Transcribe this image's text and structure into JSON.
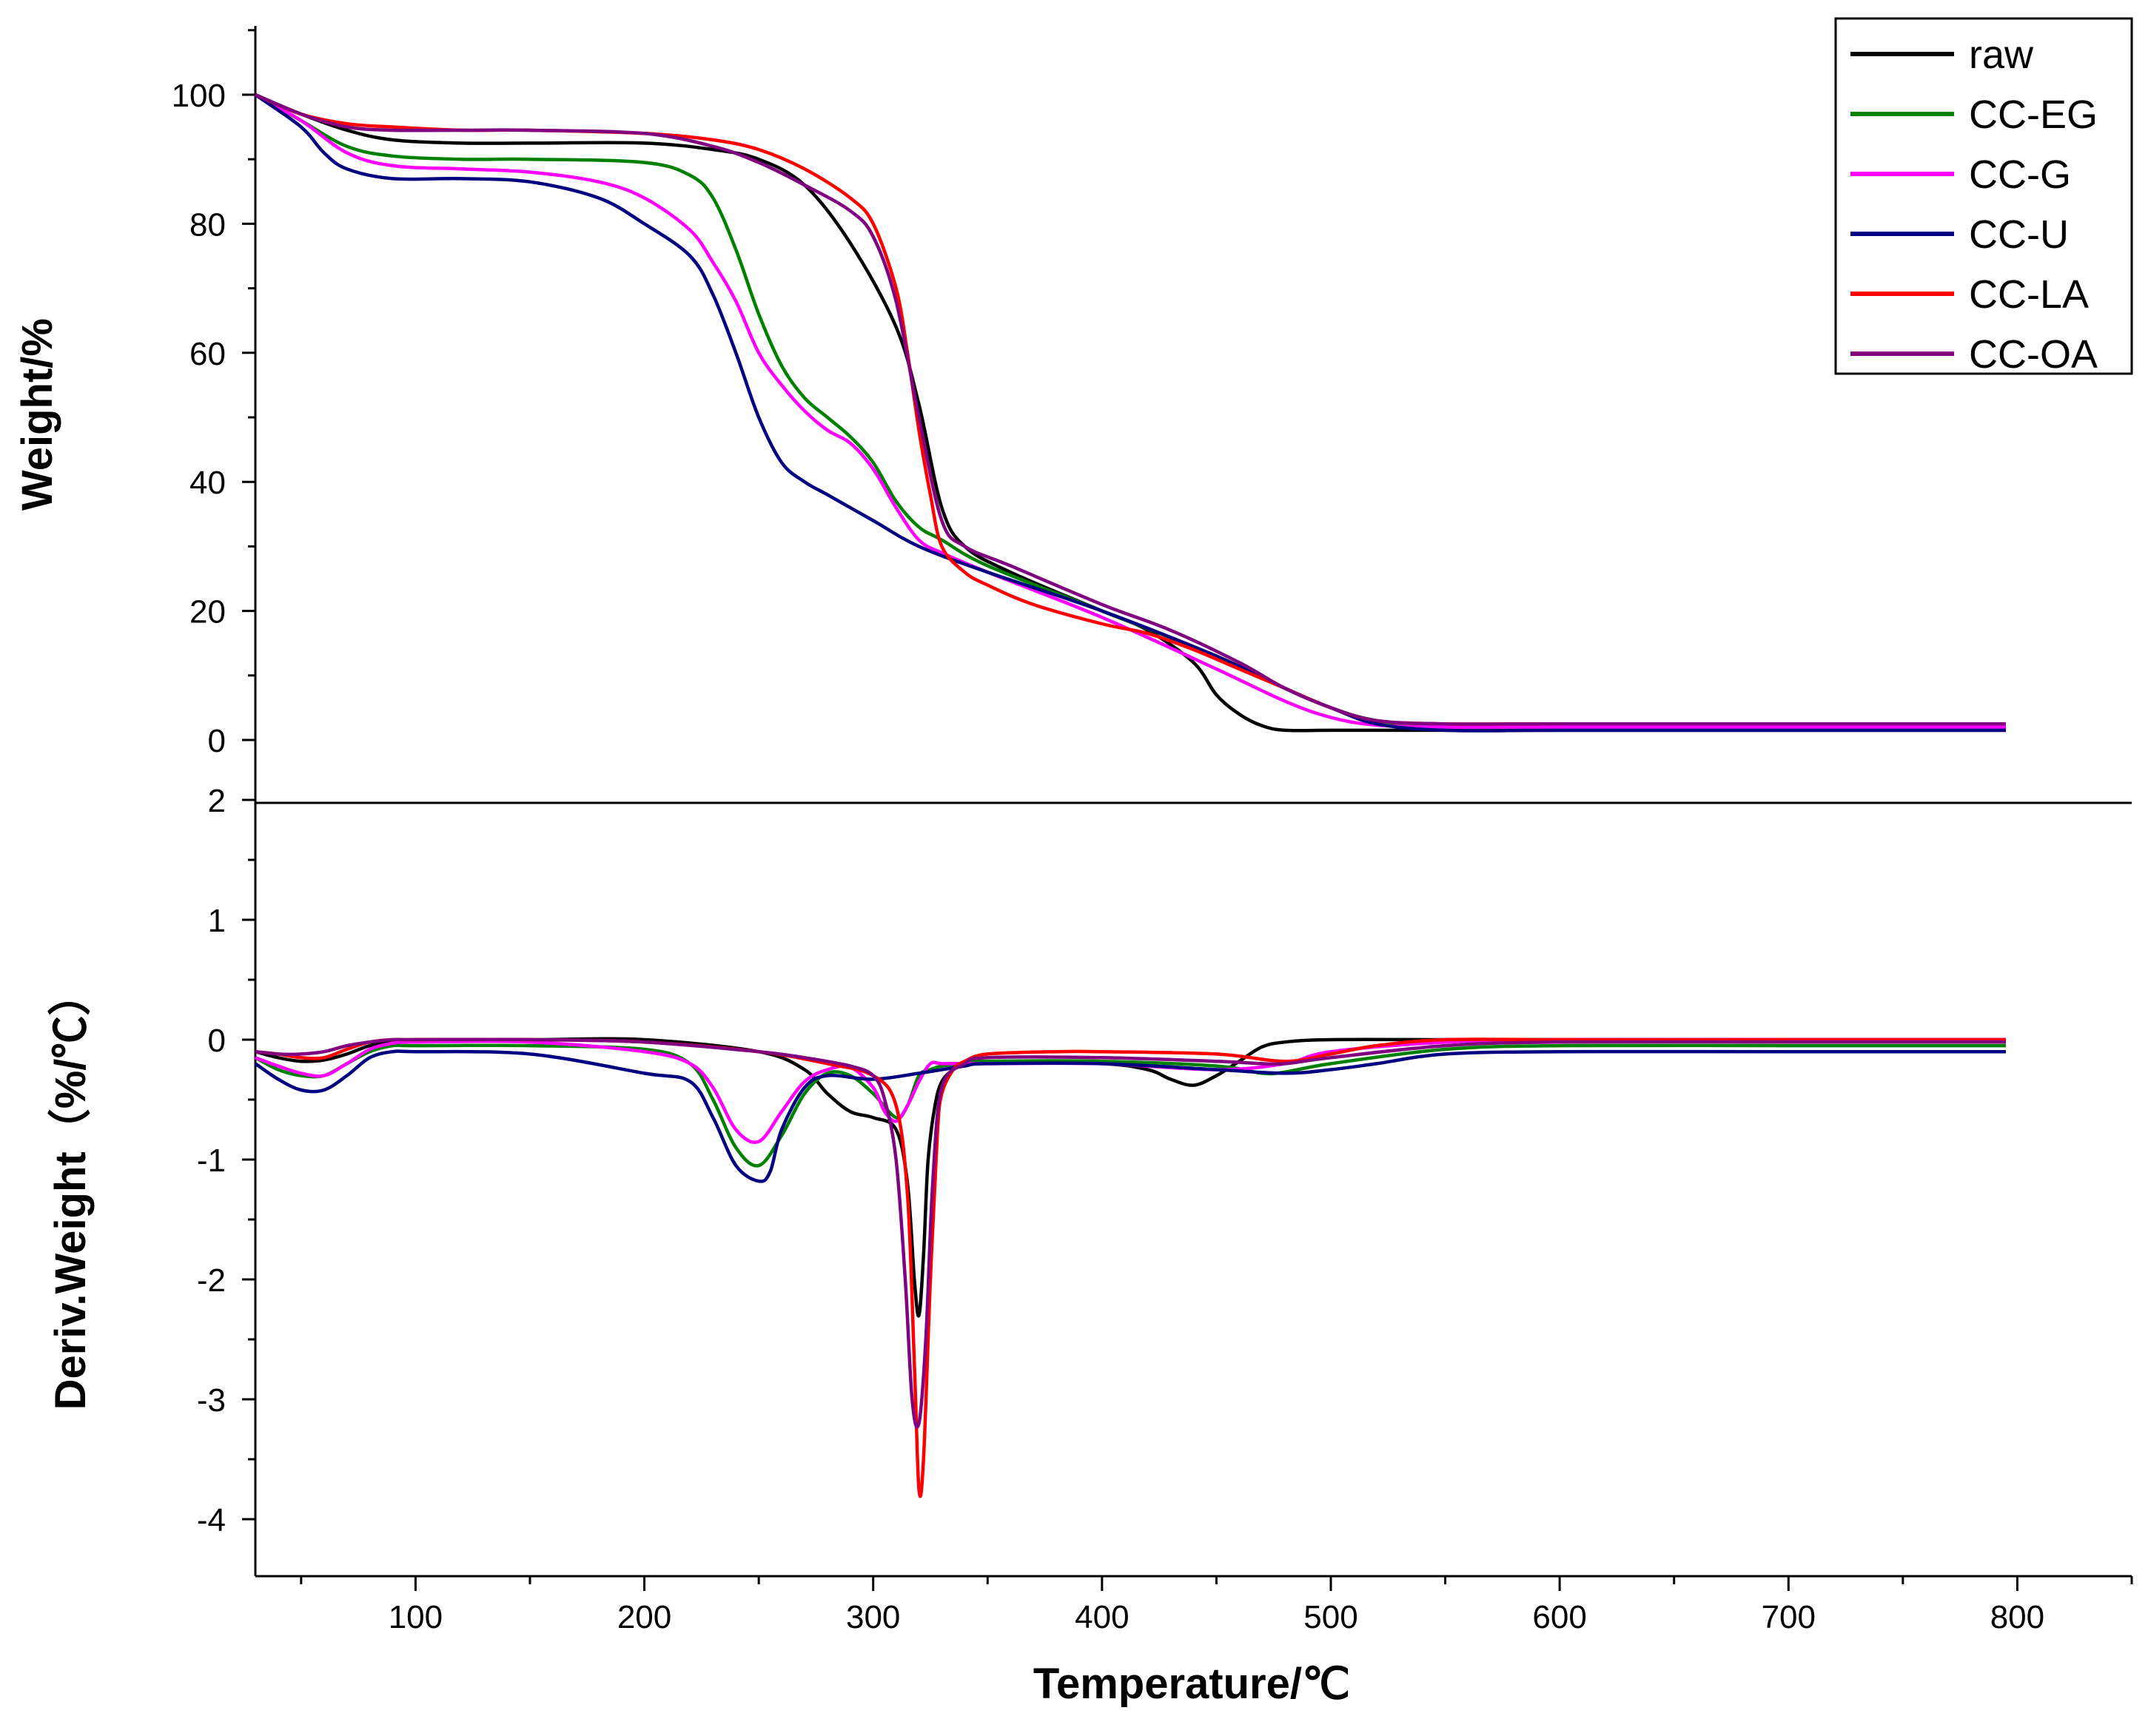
{
  "chart_data": [
    {
      "type": "line",
      "panel": "top",
      "title": "",
      "xlabel": "Temperature/℃",
      "ylabel": "Weight/%",
      "xlim": [
        30,
        850
      ],
      "ylim": [
        -5,
        110
      ],
      "x_ticks": [
        100,
        200,
        300,
        400,
        500,
        600,
        700,
        800
      ],
      "y_ticks": [
        0,
        20,
        40,
        60,
        80,
        100
      ],
      "legend": {
        "position": "top-right",
        "entries": [
          "raw",
          "CC-EG",
          "CC-G",
          "CC-U",
          "CC-LA",
          "CC-OA"
        ]
      },
      "series": [
        {
          "name": "raw",
          "color": "#000000",
          "x": [
            30,
            50,
            70,
            90,
            120,
            150,
            200,
            230,
            250,
            270,
            290,
            310,
            320,
            330,
            340,
            360,
            400,
            420,
            440,
            450,
            460,
            470,
            480,
            500,
            550,
            600,
            700,
            795
          ],
          "values": [
            100,
            97,
            94.5,
            93,
            92.5,
            92.5,
            92.5,
            91.5,
            90,
            86,
            77,
            64,
            52,
            36,
            30,
            26,
            20,
            17,
            12,
            7,
            4,
            2.2,
            1.5,
            1.5,
            1.5,
            1.5,
            1.5,
            1.5
          ]
        },
        {
          "name": "CC-EG",
          "color": "#008000",
          "x": [
            30,
            50,
            70,
            90,
            120,
            150,
            200,
            220,
            230,
            240,
            250,
            260,
            270,
            280,
            290,
            300,
            310,
            320,
            330,
            350,
            400,
            450,
            480,
            500,
            520,
            550,
            600,
            700,
            795
          ],
          "values": [
            100,
            96,
            92,
            90.5,
            90,
            90,
            89.5,
            87.5,
            84,
            76,
            66,
            58,
            53,
            50,
            47,
            43,
            37,
            33,
            31,
            27,
            20,
            13,
            8,
            5,
            3,
            2,
            2,
            2,
            2
          ]
        },
        {
          "name": "CC-G",
          "color": "#ff00ff",
          "x": [
            30,
            50,
            70,
            90,
            120,
            150,
            180,
            200,
            220,
            230,
            240,
            250,
            260,
            270,
            280,
            290,
            300,
            310,
            320,
            330,
            350,
            400,
            450,
            480,
            500,
            520,
            550,
            600,
            700,
            795
          ],
          "values": [
            100,
            96,
            91,
            89,
            88.5,
            88,
            86.5,
            84,
            79,
            74,
            68,
            60,
            55,
            51,
            48,
            46,
            42,
            36,
            31,
            29,
            26,
            19,
            11,
            6,
            3.5,
            2.3,
            2,
            2,
            2,
            2
          ]
        },
        {
          "name": "CC-U",
          "color": "#000080",
          "x": [
            30,
            50,
            60,
            70,
            90,
            120,
            150,
            180,
            200,
            220,
            230,
            240,
            250,
            260,
            270,
            280,
            300,
            320,
            350,
            400,
            450,
            480,
            500,
            520,
            550,
            600,
            700,
            795
          ],
          "values": [
            100,
            95,
            91,
            88.5,
            87,
            87,
            86.5,
            84,
            80,
            75,
            69,
            60,
            50,
            43,
            40,
            38,
            34,
            30,
            26,
            20,
            13,
            8,
            5,
            2.5,
            1.5,
            1.5,
            1.5,
            1.5
          ]
        },
        {
          "name": "CC-LA",
          "color": "#ff0000",
          "x": [
            30,
            50,
            70,
            90,
            120,
            150,
            200,
            230,
            250,
            270,
            290,
            300,
            310,
            315,
            320,
            325,
            330,
            340,
            350,
            370,
            400,
            420,
            440,
            460,
            480,
            500,
            520,
            550,
            600,
            700,
            795
          ],
          "values": [
            100,
            97,
            95.5,
            95,
            94.5,
            94.5,
            94,
            93,
            91.5,
            88.5,
            84,
            80,
            70,
            60,
            48,
            38,
            30,
            26,
            24,
            21,
            18,
            16.5,
            14,
            11,
            8,
            5,
            3,
            2.5,
            2.5,
            2.5,
            2.5
          ]
        },
        {
          "name": "CC-OA",
          "color": "#800080",
          "x": [
            30,
            50,
            70,
            90,
            120,
            150,
            200,
            230,
            250,
            270,
            290,
            300,
            310,
            320,
            330,
            340,
            360,
            400,
            430,
            460,
            480,
            500,
            520,
            550,
            600,
            700,
            795
          ],
          "values": [
            100,
            97,
            95,
            94.5,
            94.5,
            94.5,
            94,
            92,
            89.5,
            86,
            82,
            78,
            68,
            50,
            34,
            30,
            27,
            21,
            17,
            12,
            8,
            5,
            3,
            2.5,
            2.5,
            2.5,
            2.5
          ]
        }
      ]
    },
    {
      "type": "line",
      "panel": "bottom",
      "title": "",
      "xlabel": "Temperature/℃",
      "ylabel": "Deriv.Weight（%/℃）",
      "xlim": [
        30,
        850
      ],
      "ylim": [
        -4.5,
        2
      ],
      "x_ticks": [
        100,
        200,
        300,
        400,
        500,
        600,
        700,
        800
      ],
      "y_ticks": [
        2,
        1,
        0,
        -1,
        -2,
        -3,
        -4
      ],
      "series": [
        {
          "name": "raw",
          "color": "#000000",
          "x": [
            30,
            40,
            50,
            60,
            70,
            80,
            90,
            100,
            150,
            200,
            250,
            270,
            280,
            290,
            300,
            310,
            315,
            318,
            320,
            322,
            324,
            327,
            330,
            335,
            340,
            350,
            400,
            420,
            430,
            440,
            450,
            460,
            470,
            480,
            500,
            550,
            600,
            700,
            795
          ],
          "values": [
            -0.1,
            -0.15,
            -0.18,
            -0.17,
            -0.12,
            -0.05,
            -0.02,
            0,
            0,
            0,
            -0.1,
            -0.25,
            -0.45,
            -0.6,
            -0.65,
            -0.75,
            -1.2,
            -2.0,
            -2.3,
            -1.8,
            -1.0,
            -0.55,
            -0.35,
            -0.25,
            -0.2,
            -0.18,
            -0.2,
            -0.25,
            -0.33,
            -0.38,
            -0.3,
            -0.18,
            -0.06,
            -0.02,
            0,
            0,
            0,
            0,
            0
          ]
        },
        {
          "name": "CC-EG",
          "color": "#008000",
          "x": [
            30,
            40,
            50,
            60,
            70,
            80,
            90,
            100,
            150,
            200,
            220,
            230,
            240,
            250,
            260,
            270,
            280,
            290,
            300,
            310,
            315,
            320,
            325,
            330,
            340,
            350,
            400,
            450,
            470,
            480,
            500,
            550,
            600,
            700,
            795
          ],
          "values": [
            -0.15,
            -0.25,
            -0.3,
            -0.3,
            -0.2,
            -0.1,
            -0.05,
            -0.05,
            -0.05,
            -0.08,
            -0.2,
            -0.5,
            -0.9,
            -1.05,
            -0.8,
            -0.45,
            -0.28,
            -0.3,
            -0.45,
            -0.65,
            -0.55,
            -0.3,
            -0.25,
            -0.22,
            -0.2,
            -0.18,
            -0.18,
            -0.22,
            -0.28,
            -0.27,
            -0.2,
            -0.08,
            -0.05,
            -0.05,
            -0.05
          ]
        },
        {
          "name": "CC-G",
          "color": "#ff00ff",
          "x": [
            30,
            40,
            50,
            60,
            70,
            80,
            90,
            100,
            150,
            200,
            220,
            230,
            240,
            250,
            260,
            270,
            280,
            290,
            300,
            305,
            310,
            315,
            320,
            325,
            330,
            340,
            350,
            400,
            450,
            480,
            500,
            550,
            600,
            700,
            795
          ],
          "values": [
            -0.15,
            -0.22,
            -0.28,
            -0.3,
            -0.2,
            -0.08,
            -0.03,
            -0.02,
            -0.02,
            -0.1,
            -0.2,
            -0.4,
            -0.75,
            -0.85,
            -0.6,
            -0.35,
            -0.25,
            -0.23,
            -0.4,
            -0.6,
            -0.68,
            -0.55,
            -0.35,
            -0.2,
            -0.2,
            -0.2,
            -0.2,
            -0.2,
            -0.25,
            -0.2,
            -0.1,
            -0.02,
            0,
            0,
            0
          ]
        },
        {
          "name": "CC-U",
          "color": "#000080",
          "x": [
            30,
            40,
            50,
            60,
            70,
            80,
            90,
            100,
            150,
            200,
            220,
            230,
            240,
            250,
            255,
            260,
            270,
            280,
            300,
            320,
            330,
            340,
            350,
            400,
            450,
            480,
            500,
            520,
            550,
            600,
            700,
            795
          ],
          "values": [
            -0.2,
            -0.33,
            -0.42,
            -0.42,
            -0.3,
            -0.15,
            -0.1,
            -0.1,
            -0.12,
            -0.28,
            -0.35,
            -0.65,
            -1.05,
            -1.18,
            -1.1,
            -0.75,
            -0.4,
            -0.3,
            -0.33,
            -0.28,
            -0.25,
            -0.22,
            -0.2,
            -0.2,
            -0.25,
            -0.28,
            -0.25,
            -0.2,
            -0.12,
            -0.1,
            -0.1,
            -0.1
          ]
        },
        {
          "name": "CC-LA",
          "color": "#ff0000",
          "x": [
            30,
            40,
            50,
            60,
            70,
            80,
            90,
            100,
            150,
            200,
            250,
            280,
            300,
            310,
            315,
            318,
            320,
            322,
            325,
            328,
            330,
            335,
            340,
            350,
            380,
            400,
            450,
            480,
            500,
            520,
            550,
            600,
            700,
            795
          ],
          "values": [
            -0.1,
            -0.12,
            -0.15,
            -0.15,
            -0.08,
            -0.02,
            0,
            0,
            0,
            -0.02,
            -0.1,
            -0.2,
            -0.3,
            -0.55,
            -1.3,
            -2.7,
            -3.75,
            -3.5,
            -2.0,
            -0.8,
            -0.45,
            -0.25,
            -0.18,
            -0.12,
            -0.1,
            -0.1,
            -0.12,
            -0.18,
            -0.12,
            -0.05,
            0,
            0,
            0,
            0
          ]
        },
        {
          "name": "CC-OA",
          "color": "#800080",
          "x": [
            30,
            40,
            50,
            60,
            70,
            80,
            90,
            100,
            150,
            200,
            250,
            270,
            290,
            300,
            305,
            310,
            314,
            317,
            320,
            323,
            326,
            330,
            340,
            350,
            400,
            450,
            470,
            480,
            500,
            550,
            600,
            700,
            795
          ],
          "values": [
            -0.1,
            -0.12,
            -0.12,
            -0.1,
            -0.05,
            -0.02,
            0,
            0,
            0,
            -0.02,
            -0.1,
            -0.15,
            -0.22,
            -0.3,
            -0.5,
            -1.0,
            -2.0,
            -3.0,
            -3.2,
            -2.5,
            -1.2,
            -0.4,
            -0.2,
            -0.15,
            -0.15,
            -0.18,
            -0.2,
            -0.2,
            -0.15,
            -0.05,
            -0.02,
            -0.02,
            -0.02
          ]
        }
      ]
    }
  ]
}
